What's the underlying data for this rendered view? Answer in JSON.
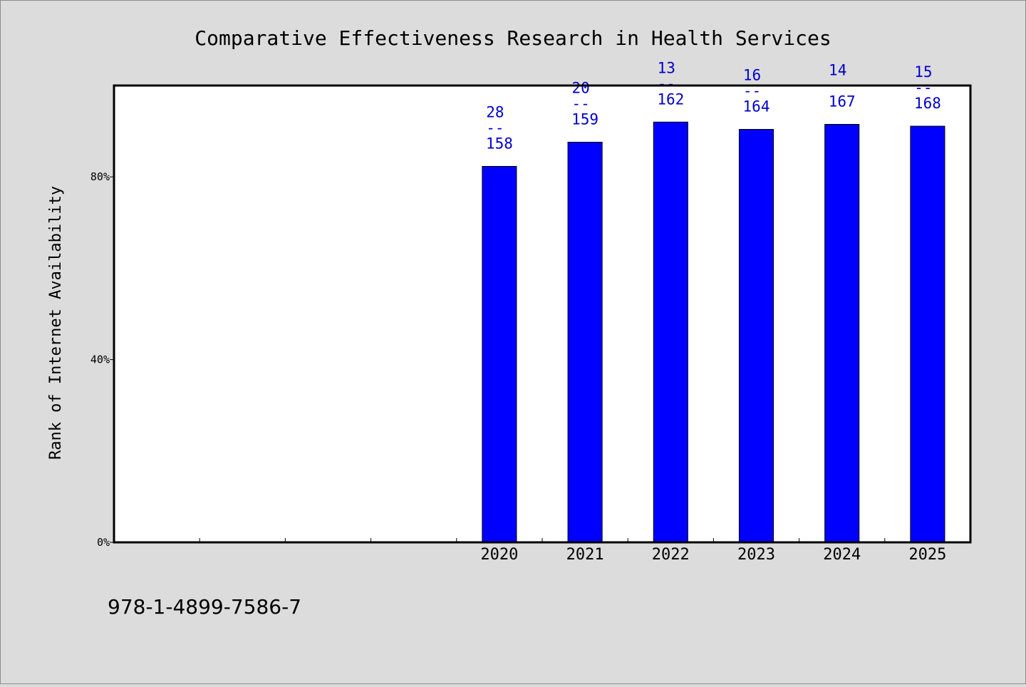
{
  "chart_data": {
    "type": "bar",
    "title": "Comparative Effectiveness Research in Health Services",
    "xlabel": "",
    "ylabel": "Rank of Internet Availability",
    "categories": [
      "",
      "",
      "",
      "",
      "2020",
      "2021",
      "2022",
      "2023",
      "2024",
      "2025"
    ],
    "values": [
      null,
      null,
      null,
      null,
      0.823,
      0.876,
      0.92,
      0.904,
      0.915,
      0.911
    ],
    "data_labels": [
      {
        "category": "2020",
        "top": "28",
        "sep": "--",
        "bottom": "158"
      },
      {
        "category": "2021",
        "top": "20",
        "sep": "--",
        "bottom": "159"
      },
      {
        "category": "2022",
        "top": "13",
        "sep": "--",
        "bottom": "162"
      },
      {
        "category": "2023",
        "top": "16",
        "sep": "--",
        "bottom": "164"
      },
      {
        "category": "2024",
        "top": "14",
        "sep": "",
        "bottom": "167"
      },
      {
        "category": "2025",
        "top": "15",
        "sep": "--",
        "bottom": "168"
      }
    ],
    "y_ticks": [
      {
        "value": 0,
        "label": "0%"
      },
      {
        "value": 0.4,
        "label": "40%"
      },
      {
        "value": 0.8,
        "label": "80%"
      }
    ],
    "ylim": [
      0,
      1.0
    ],
    "grid": false,
    "legend": "none",
    "bar_color": "#0000ff",
    "label_color": "#0000cc"
  },
  "footer": {
    "code": "978-1-4899-7586-7"
  }
}
